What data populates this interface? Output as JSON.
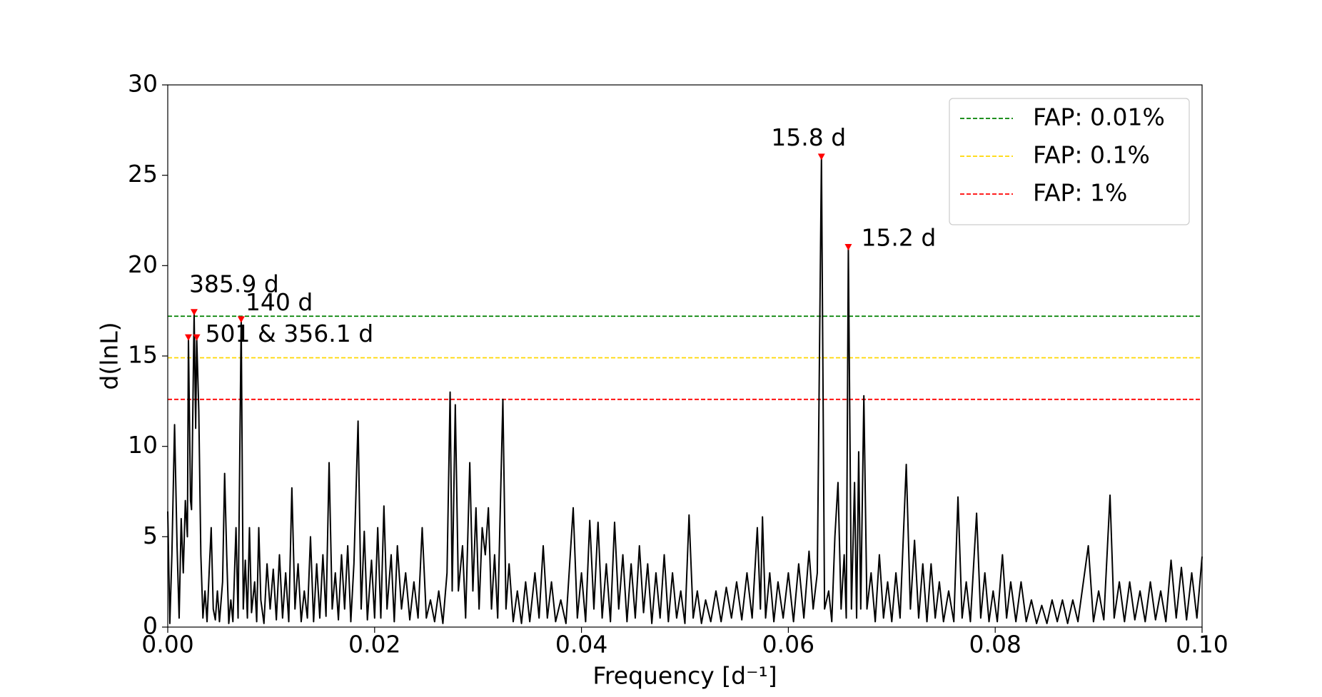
{
  "chart_data": {
    "type": "line",
    "xlabel": "Frequency [d⁻¹]",
    "ylabel": "d(lnL)",
    "xlim": [
      0,
      0.1
    ],
    "xticks": [
      {
        "value": 0,
        "label": "0.00"
      },
      {
        "value": 0.02,
        "label": "0.02"
      },
      {
        "value": 0.04,
        "label": "0.04"
      },
      {
        "value": 0.06,
        "label": "0.06"
      },
      {
        "value": 0.08,
        "label": "0.08"
      },
      {
        "value": 0.1,
        "label": "0.10"
      }
    ],
    "ylim": [
      0,
      30
    ],
    "yticks": [
      0,
      5,
      10,
      15,
      20,
      25,
      30
    ],
    "color": "#000000",
    "x": [
      0,
      0.0002,
      0.0004,
      0.00066,
      0.0009,
      0.0011,
      0.0013,
      0.0015,
      0.0017,
      0.0019,
      0.002,
      0.0022,
      0.0023,
      0.00255,
      0.0027,
      0.0028,
      0.003,
      0.0032,
      0.0034,
      0.0036,
      0.0038,
      0.004,
      0.0042,
      0.0044,
      0.0046,
      0.0048,
      0.005,
      0.0053,
      0.0055,
      0.0057,
      0.0059,
      0.0061,
      0.0063,
      0.0066,
      0.0068,
      0.0071,
      0.0073,
      0.0075,
      0.0077,
      0.0079,
      0.0081,
      0.0084,
      0.0086,
      0.0088,
      0.009,
      0.0093,
      0.0096,
      0.0099,
      0.0102,
      0.0105,
      0.0108,
      0.0111,
      0.0114,
      0.0117,
      0.012,
      0.0123,
      0.0126,
      0.0129,
      0.0132,
      0.0135,
      0.0138,
      0.0141,
      0.0144,
      0.0147,
      0.015,
      0.0153,
      0.0156,
      0.0159,
      0.0162,
      0.0165,
      0.0168,
      0.0171,
      0.0174,
      0.0177,
      0.018,
      0.0184,
      0.0187,
      0.019,
      0.0193,
      0.0197,
      0.02,
      0.0203,
      0.0206,
      0.0209,
      0.0212,
      0.0216,
      0.0219,
      0.0222,
      0.0226,
      0.023,
      0.0234,
      0.0238,
      0.0242,
      0.0246,
      0.025,
      0.0254,
      0.0258,
      0.0262,
      0.0266,
      0.027,
      0.0273,
      0.0275,
      0.0278,
      0.0281,
      0.0285,
      0.0288,
      0.0292,
      0.0295,
      0.0298,
      0.0301,
      0.0304,
      0.0307,
      0.031,
      0.0313,
      0.0316,
      0.0319,
      0.0324,
      0.0327,
      0.033,
      0.0334,
      0.0338,
      0.0342,
      0.0346,
      0.035,
      0.0355,
      0.0359,
      0.0363,
      0.0367,
      0.0371,
      0.0375,
      0.038,
      0.0385,
      0.0392,
      0.0396,
      0.04,
      0.0404,
      0.0408,
      0.0412,
      0.0416,
      0.042,
      0.0424,
      0.0428,
      0.0432,
      0.0436,
      0.044,
      0.0444,
      0.0448,
      0.0452,
      0.0456,
      0.046,
      0.0464,
      0.0468,
      0.0472,
      0.0476,
      0.048,
      0.0484,
      0.0488,
      0.0492,
      0.0496,
      0.05,
      0.0504,
      0.0508,
      0.0512,
      0.0516,
      0.052,
      0.0525,
      0.053,
      0.0535,
      0.054,
      0.0545,
      0.055,
      0.0555,
      0.056,
      0.0565,
      0.057,
      0.0573,
      0.0575,
      0.0578,
      0.0582,
      0.0586,
      0.059,
      0.0595,
      0.06,
      0.0605,
      0.061,
      0.0615,
      0.062,
      0.0624,
      0.0628,
      0.0632,
      0.0635,
      0.0639,
      0.0642,
      0.0645,
      0.0648,
      0.0651,
      0.0654,
      0.0656,
      0.0658,
      0.0661,
      0.0664,
      0.0666,
      0.0668,
      0.067,
      0.0673,
      0.0676,
      0.068,
      0.0684,
      0.0688,
      0.0692,
      0.0696,
      0.07,
      0.0704,
      0.0708,
      0.0714,
      0.0718,
      0.0722,
      0.0726,
      0.073,
      0.0734,
      0.0738,
      0.0742,
      0.0746,
      0.075,
      0.0755,
      0.076,
      0.0764,
      0.0768,
      0.0772,
      0.0776,
      0.0782,
      0.0786,
      0.079,
      0.0794,
      0.0798,
      0.0802,
      0.0807,
      0.0811,
      0.0815,
      0.082,
      0.0825,
      0.083,
      0.0835,
      0.084,
      0.0845,
      0.085,
      0.0855,
      0.086,
      0.0865,
      0.087,
      0.0875,
      0.088,
      0.089,
      0.0895,
      0.09,
      0.0905,
      0.0911,
      0.0915,
      0.092,
      0.0925,
      0.093,
      0.0935,
      0.094,
      0.0945,
      0.095,
      0.0955,
      0.096,
      0.0965,
      0.097,
      0.0975,
      0.098,
      0.0985,
      0.099,
      0.0995,
      0.1
    ],
    "values": [
      6.4,
      0.2,
      4,
      11.2,
      4.5,
      0.5,
      6,
      3,
      7,
      5,
      16,
      7,
      6.5,
      17.4,
      11,
      16,
      12,
      4,
      0.5,
      2,
      0.3,
      3,
      5.5,
      1,
      0.4,
      2,
      0.3,
      2.5,
      8.5,
      4,
      0.2,
      1.5,
      0.3,
      5.5,
      0.5,
      17,
      1,
      3.7,
      0.5,
      5.5,
      0.8,
      2.5,
      0.3,
      5.5,
      1.5,
      0.2,
      3.5,
      1,
      3.2,
      0.4,
      4,
      0.5,
      3,
      0.3,
      7.7,
      1,
      3.5,
      0.3,
      2,
      0.5,
      5,
      0.3,
      3.5,
      0.5,
      4,
      0.6,
      9.1,
      1,
      3,
      0.4,
      4,
      1,
      4.5,
      0.3,
      3.5,
      11.4,
      1,
      5.3,
      0.4,
      3.7,
      0.5,
      5.5,
      0.5,
      6.7,
      1,
      4,
      0.3,
      4.5,
      1,
      3,
      0.4,
      2.5,
      0.5,
      5.5,
      0.5,
      1.5,
      0.3,
      2,
      0.2,
      3,
      13,
      2,
      12.3,
      2,
      4.5,
      0.5,
      9.1,
      2,
      6.6,
      1,
      5.5,
      4,
      6.6,
      1,
      4,
      0.5,
      12.6,
      1,
      3.5,
      0.3,
      2,
      0.2,
      2.5,
      0.3,
      3,
      0.5,
      4.5,
      0.5,
      2.5,
      0.3,
      1.5,
      0.2,
      6.6,
      0.5,
      3,
      0.3,
      5.9,
      1,
      5.8,
      0.5,
      3.5,
      0.3,
      5.8,
      1,
      4,
      0.3,
      3.5,
      0.5,
      4.5,
      0.8,
      3.5,
      0.2,
      3,
      0.5,
      4,
      0.3,
      3,
      0.5,
      2,
      0.2,
      6.2,
      0.5,
      2,
      0.2,
      1.5,
      0.3,
      2,
      0.3,
      2.2,
      0.5,
      2.5,
      0.4,
      3,
      0.5,
      5.5,
      1,
      6.1,
      0.5,
      3,
      0.3,
      2.5,
      0.5,
      3,
      0.3,
      3.5,
      0.5,
      4.2,
      1,
      3,
      26,
      1,
      2,
      0.3,
      5,
      8,
      1,
      4,
      0.5,
      21,
      1,
      8,
      0.5,
      9.7,
      1,
      12.8,
      1,
      3,
      0.3,
      4,
      0.5,
      2.5,
      0.3,
      3,
      0.5,
      9,
      1,
      4.8,
      0.5,
      3.5,
      0.3,
      3.5,
      0.5,
      2.5,
      0.3,
      2,
      0.3,
      7.2,
      0.5,
      2.5,
      0.3,
      6.3,
      0.5,
      3,
      0.3,
      2,
      0.3,
      4,
      0.5,
      2.5,
      0.3,
      2.5,
      0.3,
      1.5,
      0.2,
      1.2,
      0.2,
      1.5,
      0.3,
      1.5,
      0.2,
      1.5,
      0.3,
      4.5,
      0.3,
      2,
      0.4,
      7.3,
      0.5,
      2.5,
      0.3,
      2.5,
      0.4,
      2,
      0.3,
      2.5,
      0.4,
      2,
      0.3,
      3.7,
      0.5,
      3.3,
      0.4,
      3,
      0.5,
      3.9
    ],
    "peaks": {
      "color": "#ff0000",
      "x": [
        0.002,
        0.00255,
        0.0028,
        0.0071,
        0.0632,
        0.0658
      ],
      "values": [
        16,
        17.4,
        16,
        17,
        26,
        21
      ],
      "labels": [
        null,
        "385.9 d",
        "501 & 356.1 d",
        "140 d",
        "15.8 d",
        "15.2 d"
      ]
    },
    "thresholds": [
      {
        "name": "FAP: 0.01%",
        "value": 17.2,
        "color": "#008000"
      },
      {
        "name": "FAP: 0.1%",
        "value": 14.9,
        "color": "#ffd700"
      },
      {
        "name": "FAP: 1%",
        "value": 12.6,
        "color": "#ff0000"
      }
    ],
    "legend": "upper right"
  }
}
